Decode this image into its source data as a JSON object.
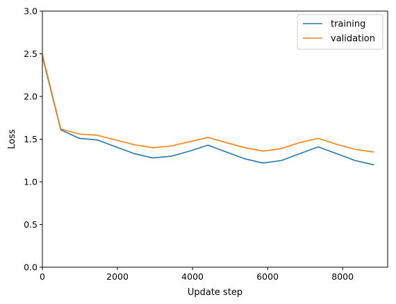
{
  "chart_data": {
    "type": "line",
    "title": "",
    "xlabel": "Update step",
    "ylabel": "Loss",
    "xlim": [
      0,
      9200
    ],
    "ylim": [
      0,
      3.0
    ],
    "xticks": [
      0,
      2000,
      4000,
      6000,
      8000
    ],
    "xtick_labels": [
      "0",
      "2000",
      "4000",
      "6000",
      "8000"
    ],
    "yticks": [
      0,
      0.5,
      1.0,
      1.5,
      2.0,
      2.5,
      3.0
    ],
    "ytick_labels": [
      "0.0",
      "0.5",
      "1.0",
      "1.5",
      "2.0",
      "2.5",
      "3.0"
    ],
    "grid": false,
    "legend_position": "top-right",
    "x": [
      0,
      490,
      980,
      1470,
      1960,
      2450,
      2940,
      3430,
      3920,
      4410,
      4900,
      5390,
      5880,
      6370,
      6860,
      7350,
      7840,
      8330,
      8820
    ],
    "series": [
      {
        "name": "training",
        "color": "#1f77b4",
        "values": [
          2.47,
          1.61,
          1.51,
          1.49,
          1.41,
          1.33,
          1.28,
          1.3,
          1.36,
          1.43,
          1.35,
          1.27,
          1.22,
          1.25,
          1.33,
          1.41,
          1.33,
          1.25,
          1.2
        ]
      },
      {
        "name": "validation",
        "color": "#ff7f0e",
        "values": [
          2.49,
          1.62,
          1.56,
          1.545,
          1.49,
          1.435,
          1.4,
          1.42,
          1.47,
          1.52,
          1.46,
          1.4,
          1.36,
          1.39,
          1.46,
          1.51,
          1.44,
          1.38,
          1.35
        ]
      }
    ]
  }
}
